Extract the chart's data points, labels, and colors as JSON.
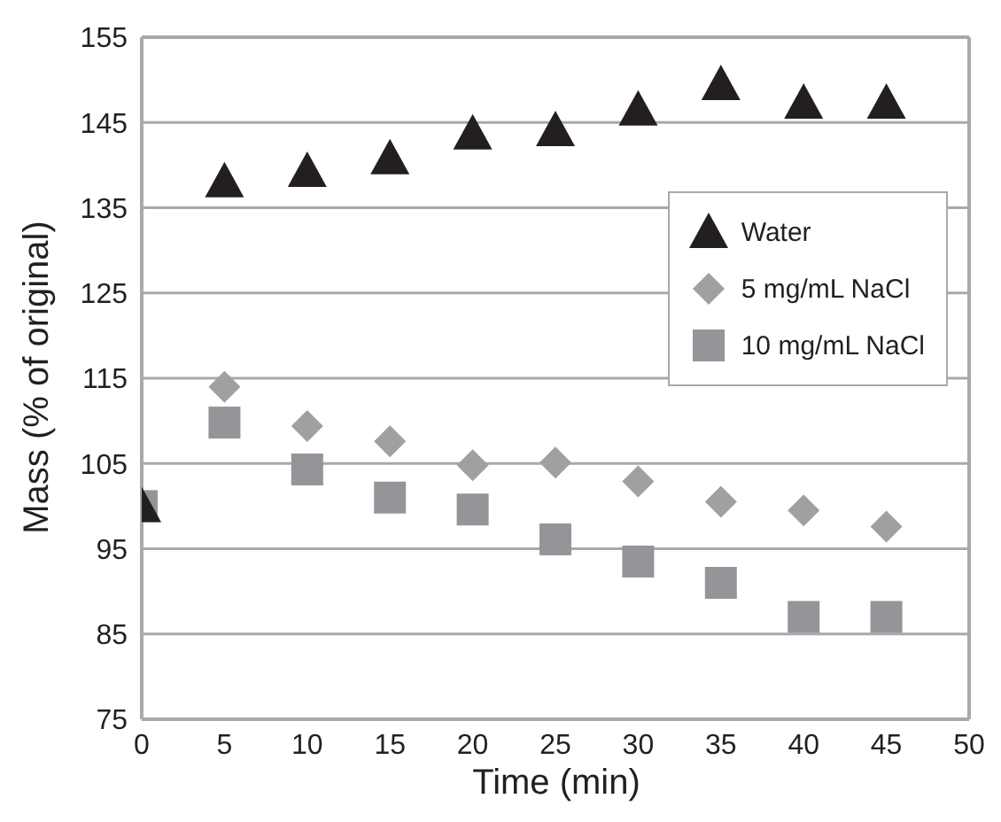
{
  "chart_data": {
    "type": "scatter",
    "xlabel": "Time (min)",
    "ylabel": "Mass (% of original)",
    "x": [
      0,
      5,
      10,
      15,
      20,
      25,
      30,
      35,
      40,
      45
    ],
    "series": [
      {
        "name": "Water",
        "color": "#231f20",
        "marker": "triangle",
        "values": [
          100,
          138.1,
          139.3,
          140.8,
          143.7,
          144.1,
          146.5,
          149.5,
          147.3,
          147.3
        ]
      },
      {
        "name": "5 mg/mL NaCl",
        "color": "#a0a0a2",
        "marker": "diamond",
        "values": [
          null,
          114,
          109.4,
          107.6,
          104.8,
          105.1,
          102.9,
          100.5,
          99.5,
          97.6
        ]
      },
      {
        "name": "10 mg/mL NaCl",
        "color": "#939598",
        "marker": "square",
        "values": [
          100,
          109.8,
          104.3,
          101,
          99.6,
          96.1,
          93.5,
          91,
          87,
          87
        ]
      }
    ],
    "xlim": [
      0,
      50
    ],
    "xticks": [
      0,
      5,
      10,
      15,
      20,
      25,
      30,
      35,
      40,
      45,
      50
    ],
    "ylim": [
      75,
      155
    ],
    "yticks": [
      75,
      85,
      95,
      105,
      115,
      125,
      135,
      145,
      155
    ],
    "grid": "y",
    "legend": "center right"
  }
}
